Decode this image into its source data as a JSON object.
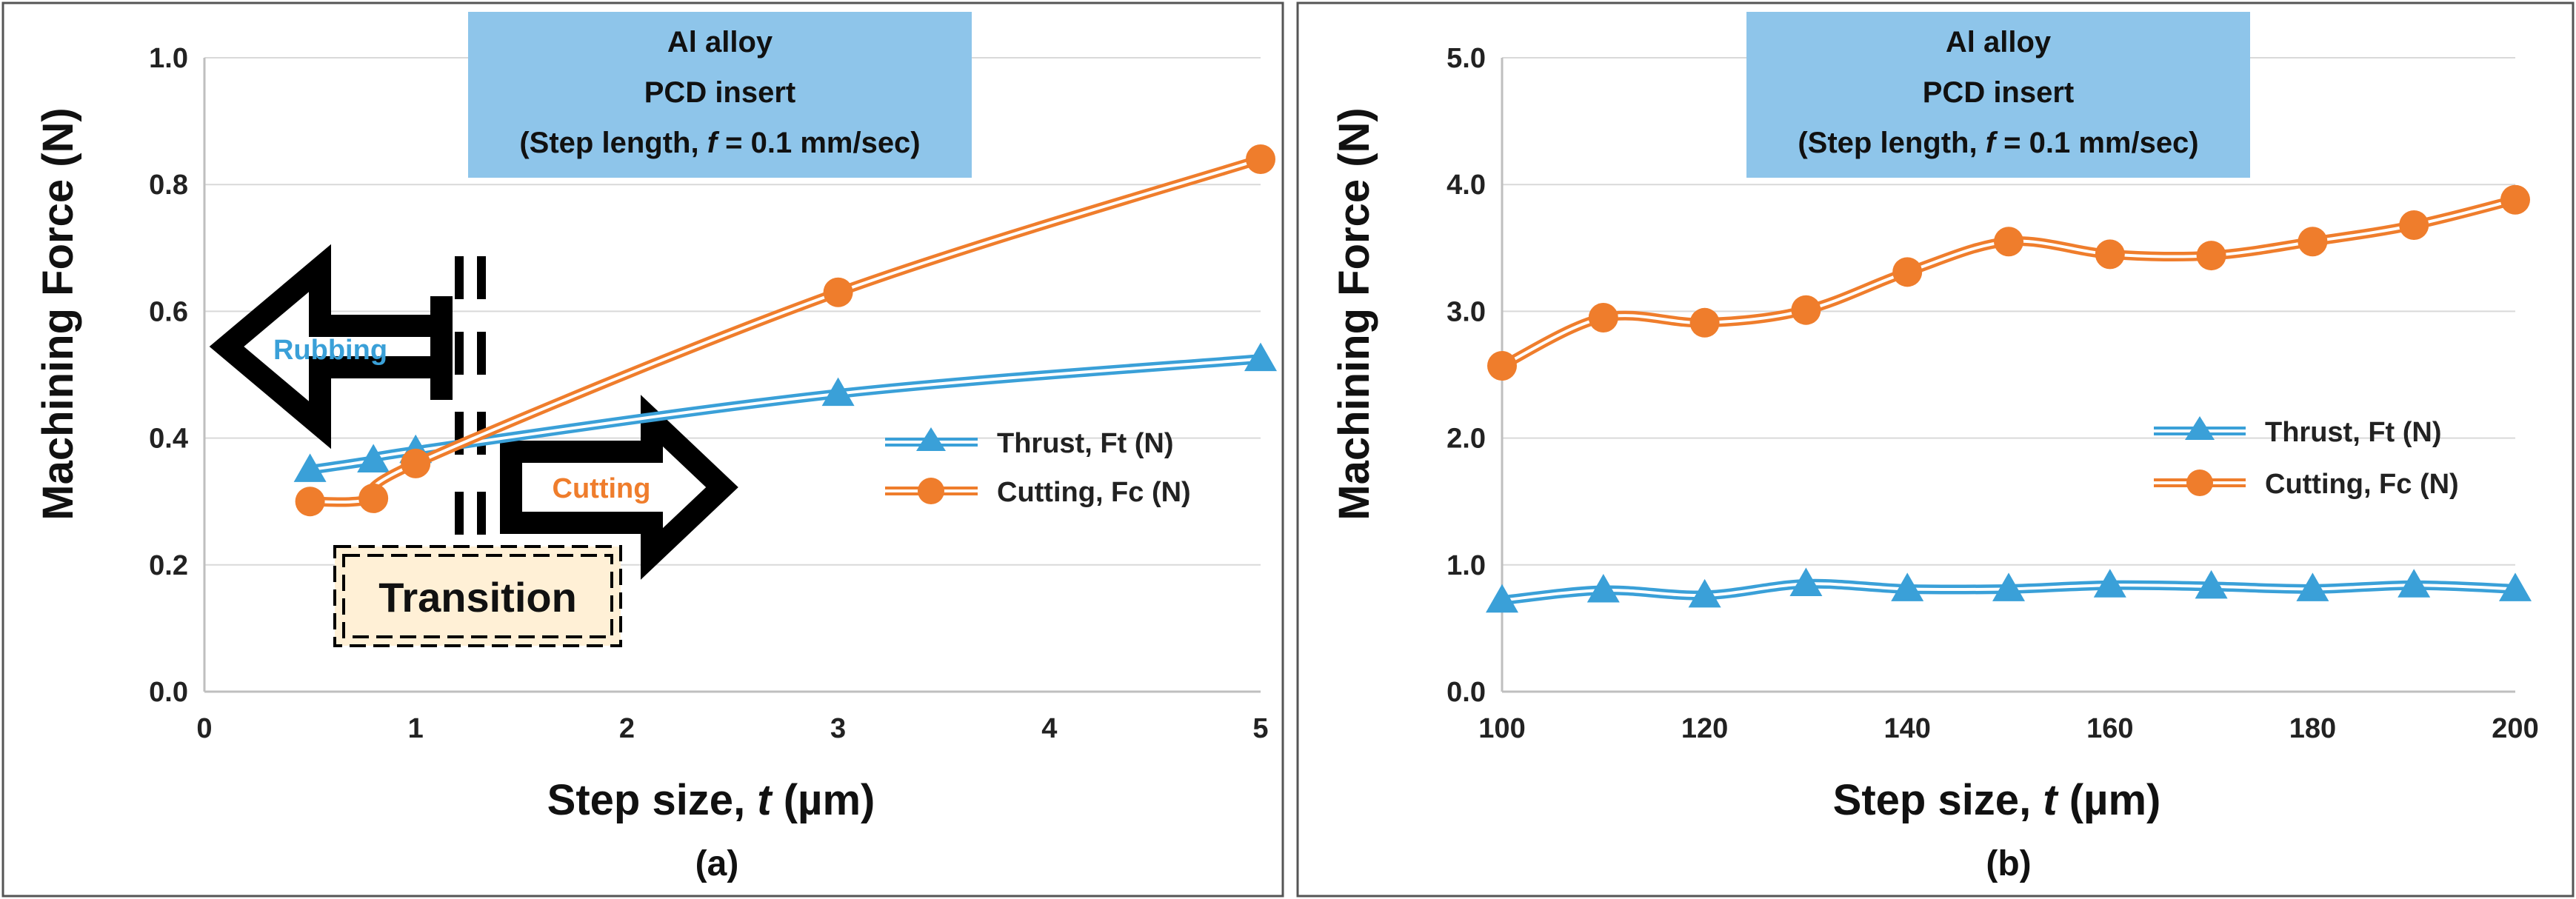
{
  "colors": {
    "thrust": "#3aa0d8",
    "cutting": "#ef7d2c",
    "annotation_bg": "#8ec5ea",
    "transition_bg": "#fff0d6",
    "grid": "#d9d9d9"
  },
  "chart_data": [
    {
      "type": "line",
      "panel_label": "(a)",
      "annotation": {
        "line1": "Al alloy",
        "line2": "PCD insert",
        "line3_prefix": "(Step length, ",
        "line3_var": "f",
        "line3_suffix": " = 0.1 mm/sec)"
      },
      "xlabel_prefix": "Step size, ",
      "xlabel_var": "t",
      "xlabel_suffix": " (µm)",
      "ylabel": "Machining Force (N)",
      "xlim": [
        0,
        5
      ],
      "ylim": [
        0,
        1.0
      ],
      "x_ticks": [
        0,
        1,
        2,
        3,
        4,
        5
      ],
      "x_tick_labels": [
        "0",
        "1",
        "2",
        "3",
        "4",
        "5"
      ],
      "y_ticks": [
        0,
        0.2,
        0.4,
        0.6,
        0.8,
        1.0
      ],
      "y_tick_labels": [
        "0.0",
        "0.2",
        "0.4",
        "0.6",
        "0.8",
        "1.0"
      ],
      "legend_position": "right-middle",
      "series": [
        {
          "name": "Thrust, Ft (N)",
          "key": "thrust",
          "marker": "triangle",
          "x": [
            0.5,
            0.8,
            1.0,
            3.0,
            5.0
          ],
          "y": [
            0.35,
            0.365,
            0.38,
            0.47,
            0.525
          ]
        },
        {
          "name": "Cutting, Fc (N)",
          "key": "cutting",
          "marker": "circle",
          "x": [
            0.5,
            0.8,
            1.0,
            3.0,
            5.0
          ],
          "y": [
            0.3,
            0.305,
            0.36,
            0.63,
            0.84
          ]
        }
      ],
      "regions": {
        "rubbing": "Rubbing",
        "cutting": "Cutting",
        "transition": "Transition"
      }
    },
    {
      "type": "line",
      "panel_label": "(b)",
      "annotation": {
        "line1": "Al alloy",
        "line2": "PCD insert",
        "line3_prefix": "(Step length, ",
        "line3_var": "f",
        "line3_suffix": " = 0.1 mm/sec)"
      },
      "xlabel_prefix": "Step size, ",
      "xlabel_var": "t",
      "xlabel_suffix": " (µm)",
      "ylabel": "Machining Force (N)",
      "xlim": [
        100,
        200
      ],
      "ylim": [
        0,
        5.0
      ],
      "x_ticks": [
        100,
        120,
        140,
        160,
        180,
        200
      ],
      "x_tick_labels": [
        "100",
        "120",
        "140",
        "160",
        "180",
        "200"
      ],
      "y_ticks": [
        0,
        1,
        2,
        3,
        4,
        5
      ],
      "y_tick_labels": [
        "0.0",
        "1.0",
        "2.0",
        "3.0",
        "4.0",
        "5.0"
      ],
      "legend_position": "right-middle",
      "series": [
        {
          "name": "Thrust, Ft (N)",
          "key": "thrust",
          "marker": "triangle",
          "x": [
            100,
            110,
            120,
            130,
            140,
            150,
            160,
            170,
            180,
            190,
            200
          ],
          "y": [
            0.72,
            0.8,
            0.76,
            0.85,
            0.81,
            0.81,
            0.84,
            0.83,
            0.81,
            0.84,
            0.81
          ]
        },
        {
          "name": "Cutting, Fc (N)",
          "key": "cutting",
          "marker": "circle",
          "x": [
            100,
            110,
            120,
            130,
            140,
            150,
            160,
            170,
            180,
            190,
            200
          ],
          "y": [
            2.57,
            2.95,
            2.91,
            3.01,
            3.31,
            3.55,
            3.45,
            3.44,
            3.55,
            3.68,
            3.88
          ]
        }
      ]
    }
  ]
}
